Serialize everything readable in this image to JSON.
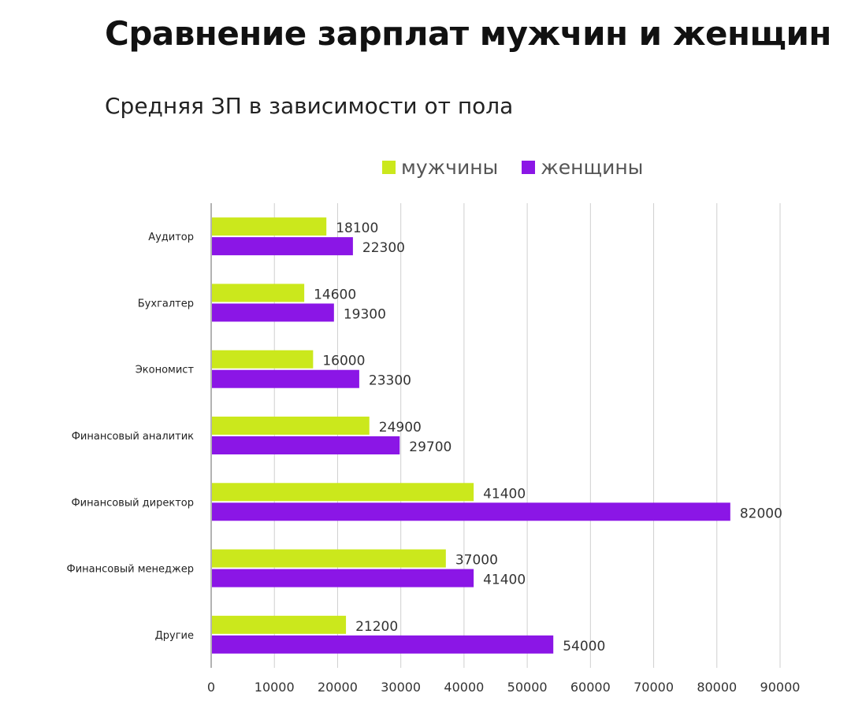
{
  "page": {
    "title": "Сравнение зарплат мужчин и женщин"
  },
  "chart_data": {
    "type": "bar",
    "orientation": "horizontal",
    "title": "Средняя ЗП в зависимости от пола",
    "categories": [
      "Аудитор",
      "Бухгалтер",
      "Экономист",
      "Финансовый аналитик",
      "Финансовый директор",
      "Финансовый менеджер",
      "Другие"
    ],
    "series": [
      {
        "name": "мужчины",
        "color": "#cbe81c",
        "values": [
          18100,
          14600,
          16000,
          24900,
          41400,
          37000,
          21200
        ]
      },
      {
        "name": "женщины",
        "color": "#8b16e6",
        "values": [
          22300,
          19300,
          23300,
          29700,
          82000,
          41400,
          54000
        ]
      }
    ],
    "xlim": [
      0,
      90000
    ],
    "xticks": [
      "0",
      "10000",
      "20000",
      "30000",
      "40000",
      "50000",
      "60000",
      "70000",
      "80000",
      "90000"
    ],
    "grid": true,
    "legend_position": "top"
  }
}
